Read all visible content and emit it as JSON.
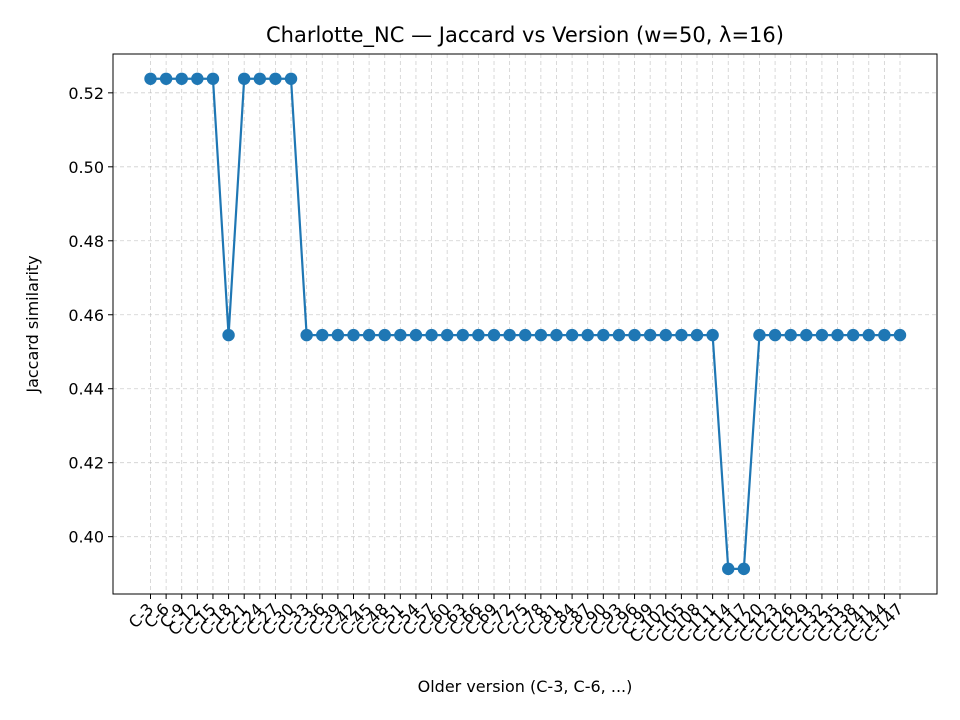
{
  "chart_data": {
    "type": "line",
    "title": "Charlotte_NC — Jaccard vs Version (w=50, λ=16)",
    "xlabel": "Older version (C-3, C-6, ...)",
    "ylabel": "Jaccard similarity",
    "ylim": [
      0.3845,
      0.5305
    ],
    "yticks": [
      0.4,
      0.42,
      0.44,
      0.46,
      0.48,
      0.5,
      0.52
    ],
    "grid": true,
    "marker": "circle",
    "color": "#1f77b4",
    "categories": [
      "C-3",
      "C-6",
      "C-9",
      "C-12",
      "C-15",
      "C-18",
      "C-21",
      "C-24",
      "C-27",
      "C-30",
      "C-33",
      "C-36",
      "C-39",
      "C-42",
      "C-45",
      "C-48",
      "C-51",
      "C-54",
      "C-57",
      "C-60",
      "C-63",
      "C-66",
      "C-69",
      "C-72",
      "C-75",
      "C-78",
      "C-81",
      "C-84",
      "C-87",
      "C-90",
      "C-93",
      "C-96",
      "C-99",
      "C-102",
      "C-105",
      "C-108",
      "C-111",
      "C-114",
      "C-117",
      "C-120",
      "C-123",
      "C-126",
      "C-129",
      "C-132",
      "C-135",
      "C-138",
      "C-141",
      "C-144",
      "C-147"
    ],
    "series": [
      {
        "values": [
          0.5238,
          0.5238,
          0.5238,
          0.5238,
          0.5238,
          0.4545,
          0.5238,
          0.5238,
          0.5238,
          0.5238,
          0.4545,
          0.4545,
          0.4545,
          0.4545,
          0.4545,
          0.4545,
          0.4545,
          0.4545,
          0.4545,
          0.4545,
          0.4545,
          0.4545,
          0.4545,
          0.4545,
          0.4545,
          0.4545,
          0.4545,
          0.4545,
          0.4545,
          0.4545,
          0.4545,
          0.4545,
          0.4545,
          0.4545,
          0.4545,
          0.4545,
          0.4545,
          0.3913,
          0.3913,
          0.4545,
          0.4545,
          0.4545,
          0.4545,
          0.4545,
          0.4545,
          0.4545,
          0.4545,
          0.4545,
          0.4545
        ]
      }
    ]
  }
}
